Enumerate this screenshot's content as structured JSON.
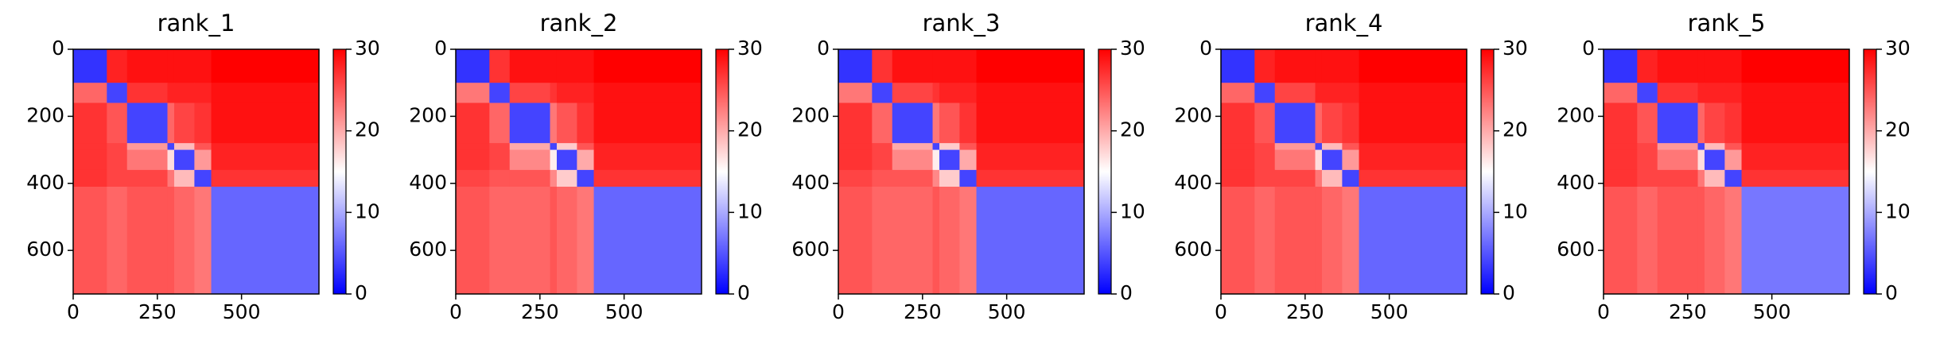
{
  "chart_data": [
    {
      "type": "heatmap",
      "title": "rank_1",
      "cmap": "bwr",
      "xlim": [
        0,
        730
      ],
      "ylim": [
        730,
        0
      ],
      "xticks": [
        0,
        250,
        500
      ],
      "yticks": [
        0,
        200,
        400,
        600
      ],
      "xbins": [
        0,
        100,
        160,
        280,
        300,
        360,
        410,
        730
      ],
      "ybins": [
        0,
        100,
        160,
        280,
        300,
        360,
        410,
        730
      ],
      "values": [
        [
          3,
          28,
          29,
          29,
          29,
          29,
          30
        ],
        [
          24,
          4,
          27,
          28,
          28,
          28,
          29
        ],
        [
          27,
          25,
          4,
          24,
          26,
          27,
          29
        ],
        [
          27,
          26,
          21,
          4,
          19,
          25,
          28
        ],
        [
          27,
          26,
          23,
          17,
          4,
          21,
          28
        ],
        [
          27,
          26,
          26,
          23,
          19,
          4,
          27
        ],
        [
          25,
          24,
          25,
          25,
          24,
          23,
          6
        ]
      ],
      "clim": [
        0,
        30
      ],
      "cticks": [
        0,
        10,
        20,
        30
      ]
    },
    {
      "type": "heatmap",
      "title": "rank_2",
      "cmap": "bwr",
      "xlim": [
        0,
        730
      ],
      "ylim": [
        730,
        0
      ],
      "xticks": [
        0,
        250,
        500
      ],
      "yticks": [
        0,
        200,
        400,
        600
      ],
      "xbins": [
        0,
        100,
        160,
        280,
        300,
        360,
        410,
        730
      ],
      "ybins": [
        0,
        100,
        160,
        280,
        300,
        360,
        410,
        730
      ],
      "values": [
        [
          3,
          27,
          29,
          29,
          29,
          29,
          30
        ],
        [
          23,
          4,
          26,
          27,
          28,
          28,
          29
        ],
        [
          27,
          24,
          4,
          23,
          25,
          27,
          29
        ],
        [
          27,
          26,
          20,
          4,
          18,
          25,
          28
        ],
        [
          27,
          26,
          22,
          16,
          4,
          20,
          28
        ],
        [
          26,
          25,
          25,
          22,
          18,
          4,
          27
        ],
        [
          25,
          24,
          24,
          25,
          24,
          23,
          6
        ]
      ],
      "clim": [
        0,
        30
      ],
      "cticks": [
        0,
        10,
        20,
        30
      ]
    },
    {
      "type": "heatmap",
      "title": "rank_3",
      "cmap": "bwr",
      "xlim": [
        0,
        730
      ],
      "ylim": [
        730,
        0
      ],
      "xticks": [
        0,
        250,
        500
      ],
      "yticks": [
        0,
        200,
        400,
        600
      ],
      "xbins": [
        0,
        100,
        160,
        280,
        300,
        360,
        410,
        730
      ],
      "ybins": [
        0,
        100,
        160,
        280,
        300,
        360,
        410,
        730
      ],
      "values": [
        [
          3,
          27,
          29,
          29,
          29,
          29,
          30
        ],
        [
          23,
          4,
          26,
          27,
          28,
          28,
          29
        ],
        [
          27,
          24,
          4,
          23,
          25,
          27,
          29
        ],
        [
          27,
          26,
          20,
          4,
          18,
          25,
          28
        ],
        [
          27,
          26,
          22,
          16,
          4,
          20,
          28
        ],
        [
          26,
          25,
          25,
          22,
          18,
          4,
          27
        ],
        [
          25,
          24,
          24,
          25,
          24,
          23,
          6
        ]
      ],
      "clim": [
        0,
        30
      ],
      "cticks": [
        0,
        10,
        20,
        30
      ]
    },
    {
      "type": "heatmap",
      "title": "rank_4",
      "cmap": "bwr",
      "xlim": [
        0,
        730
      ],
      "ylim": [
        730,
        0
      ],
      "xticks": [
        0,
        250,
        500
      ],
      "yticks": [
        0,
        200,
        400,
        600
      ],
      "xbins": [
        0,
        100,
        160,
        280,
        300,
        360,
        410,
        730
      ],
      "ybins": [
        0,
        100,
        160,
        280,
        300,
        360,
        410,
        730
      ],
      "values": [
        [
          3,
          28,
          29,
          29,
          29,
          29,
          30
        ],
        [
          24,
          4,
          26,
          28,
          28,
          28,
          29
        ],
        [
          27,
          25,
          4,
          24,
          26,
          27,
          29
        ],
        [
          27,
          26,
          21,
          4,
          19,
          25,
          28
        ],
        [
          27,
          26,
          23,
          17,
          4,
          21,
          28
        ],
        [
          27,
          26,
          26,
          23,
          19,
          4,
          27
        ],
        [
          25,
          24,
          25,
          25,
          24,
          23,
          6
        ]
      ],
      "clim": [
        0,
        30
      ],
      "cticks": [
        0,
        10,
        20,
        30
      ]
    },
    {
      "type": "heatmap",
      "title": "rank_5",
      "cmap": "bwr",
      "xlim": [
        0,
        730
      ],
      "ylim": [
        730,
        0
      ],
      "xticks": [
        0,
        250,
        500
      ],
      "yticks": [
        0,
        200,
        400,
        600
      ],
      "xbins": [
        0,
        100,
        160,
        280,
        300,
        360,
        410,
        730
      ],
      "ybins": [
        0,
        100,
        160,
        280,
        300,
        360,
        410,
        730
      ],
      "values": [
        [
          3,
          28,
          29,
          29,
          29,
          29,
          30
        ],
        [
          24,
          4,
          27,
          28,
          28,
          28,
          29
        ],
        [
          27,
          25,
          4,
          24,
          26,
          27,
          29
        ],
        [
          27,
          26,
          21,
          4,
          19,
          25,
          28
        ],
        [
          27,
          26,
          23,
          17,
          4,
          21,
          28
        ],
        [
          27,
          26,
          26,
          23,
          19,
          4,
          27
        ],
        [
          25,
          24,
          25,
          25,
          24,
          23,
          7
        ]
      ],
      "clim": [
        0,
        30
      ],
      "cticks": [
        0,
        10,
        20,
        30
      ]
    }
  ]
}
